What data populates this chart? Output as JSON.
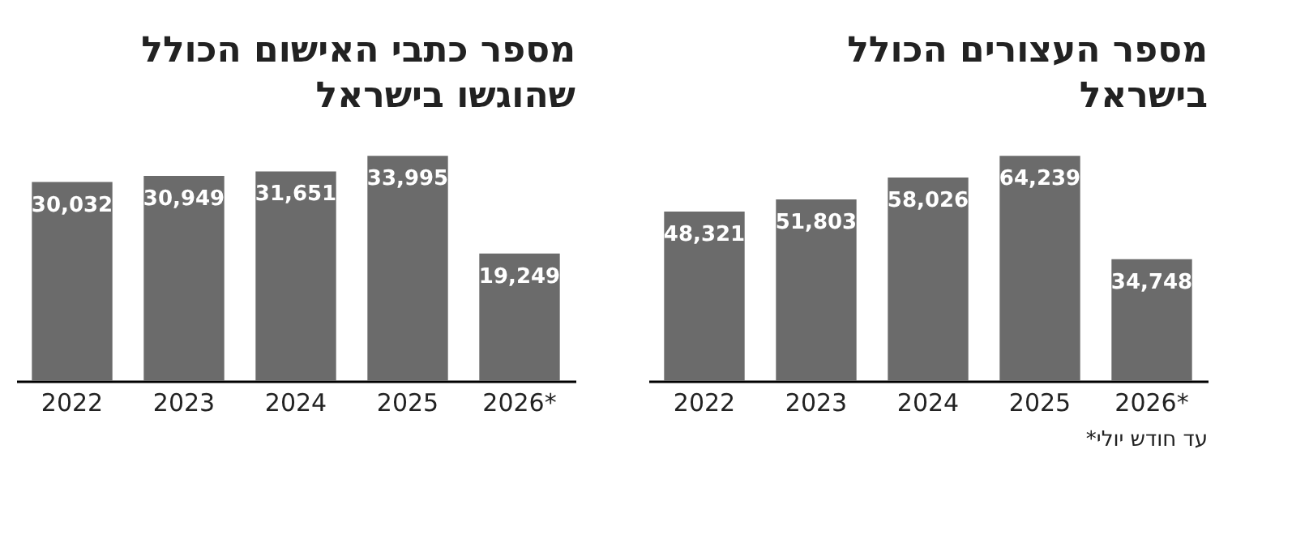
{
  "chart_data": [
    {
      "type": "bar",
      "title": "מספר כתבי האישום הכולל שהוגשו בישראל",
      "categories": [
        "2022",
        "2023",
        "2024",
        "2025",
        "2026*"
      ],
      "values": [
        30032,
        30949,
        31651,
        33995,
        19249
      ],
      "value_labels": [
        "30,032",
        "30,949",
        "31,651",
        "33,995",
        "19,249"
      ],
      "color": "#6b6b6b",
      "tick_labels": "x"
    },
    {
      "type": "bar",
      "title": "מספר העצורים הכולל בישראל",
      "categories": [
        "2022",
        "2023",
        "2024",
        "2025",
        "2026*"
      ],
      "values": [
        48321,
        51803,
        58026,
        64239,
        34748
      ],
      "value_labels": [
        "48,321",
        "51,803",
        "58,026",
        "64,239",
        "34,748"
      ],
      "color": "#6b6b6b",
      "tick_labels": "x",
      "annotations": [
        "*עד חודש יולי"
      ]
    }
  ]
}
